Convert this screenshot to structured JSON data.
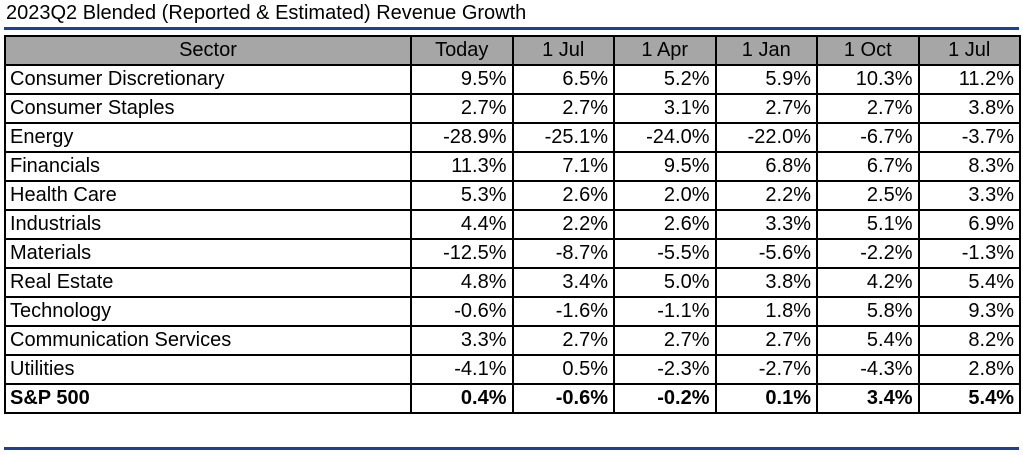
{
  "chart_data": {
    "type": "table",
    "title": "2023Q2 Blended (Reported & Estimated) Revenue Growth",
    "columns": [
      "Sector",
      "Today",
      "1 Jul",
      "1 Apr",
      "1 Jan",
      "1 Oct",
      "1 Jul"
    ],
    "rows": [
      {
        "sector": "Consumer Discretionary",
        "values": [
          "9.5%",
          "6.5%",
          "5.2%",
          "5.9%",
          "10.3%",
          "11.2%"
        ]
      },
      {
        "sector": "Consumer Staples",
        "values": [
          "2.7%",
          "2.7%",
          "3.1%",
          "2.7%",
          "2.7%",
          "3.8%"
        ]
      },
      {
        "sector": "Energy",
        "values": [
          "-28.9%",
          "-25.1%",
          "-24.0%",
          "-22.0%",
          "-6.7%",
          "-3.7%"
        ]
      },
      {
        "sector": "Financials",
        "values": [
          "11.3%",
          "7.1%",
          "9.5%",
          "6.8%",
          "6.7%",
          "8.3%"
        ]
      },
      {
        "sector": "Health Care",
        "values": [
          "5.3%",
          "2.6%",
          "2.0%",
          "2.2%",
          "2.5%",
          "3.3%"
        ]
      },
      {
        "sector": "Industrials",
        "values": [
          "4.4%",
          "2.2%",
          "2.6%",
          "3.3%",
          "5.1%",
          "6.9%"
        ]
      },
      {
        "sector": "Materials",
        "values": [
          "-12.5%",
          "-8.7%",
          "-5.5%",
          "-5.6%",
          "-2.2%",
          "-1.3%"
        ]
      },
      {
        "sector": "Real Estate",
        "values": [
          "4.8%",
          "3.4%",
          "5.0%",
          "3.8%",
          "4.2%",
          "5.4%"
        ]
      },
      {
        "sector": "Technology",
        "values": [
          "-0.6%",
          "-1.6%",
          "-1.1%",
          "1.8%",
          "5.8%",
          "9.3%"
        ]
      },
      {
        "sector": "Communication Services",
        "values": [
          "3.3%",
          "2.7%",
          "2.7%",
          "2.7%",
          "5.4%",
          "8.2%"
        ]
      },
      {
        "sector": "Utilities",
        "values": [
          "-4.1%",
          "0.5%",
          "-2.3%",
          "-2.7%",
          "-4.3%",
          "2.8%"
        ]
      },
      {
        "sector": "S&P 500",
        "values": [
          "0.4%",
          "-0.6%",
          "-0.2%",
          "0.1%",
          "3.4%",
          "5.4%"
        ],
        "total": true
      }
    ]
  },
  "colors": {
    "header_fill": "#a6a6a6",
    "rule": "#1f3f99",
    "border": "#000000"
  }
}
